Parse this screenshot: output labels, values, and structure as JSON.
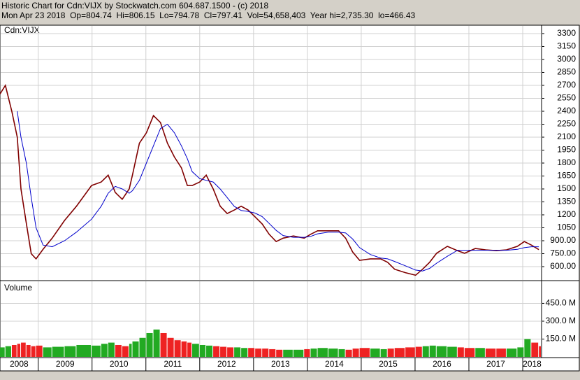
{
  "header": {
    "title": "Historic Chart for Cdn:VIJX by Stockwatch.com 604.687.1500 - (c) 2018",
    "quote": "Mon Apr 23 2018  Op=804.74  Hi=806.15  Lo=794.78  Cl=797.41  Vol=54,658,403  Year hi=2,735.30  lo=466.43"
  },
  "chart_data": [
    {
      "type": "line",
      "label": "Cdn:VIJX",
      "x": [
        2008.29,
        2008.39,
        2008.51,
        2008.61,
        2008.68,
        2008.78,
        2008.87,
        2008.96,
        2009.09,
        2009.26,
        2009.49,
        2009.71,
        2009.99,
        2010.17,
        2010.3,
        2010.43,
        2010.56,
        2010.69,
        2010.75,
        2010.88,
        2011.01,
        2011.14,
        2011.27,
        2011.4,
        2011.53,
        2011.66,
        2011.77,
        2011.86,
        2012.0,
        2012.12,
        2012.25,
        2012.38,
        2012.51,
        2012.64,
        2012.77,
        2012.9,
        2013.03,
        2013.16,
        2013.29,
        2013.42,
        2013.55,
        2013.74,
        2013.94,
        2014.06,
        2014.19,
        2014.39,
        2014.58,
        2014.71,
        2014.84,
        2014.97,
        2015.17,
        2015.36,
        2015.49,
        2015.62,
        2015.82,
        2016.01,
        2016.14,
        2016.27,
        2016.4,
        2016.6,
        2016.79,
        2016.92,
        2017.12,
        2017.31,
        2017.51,
        2017.7,
        2017.9,
        2018.03,
        2018.16,
        2018.3
      ],
      "series": [
        {
          "color": "#800000",
          "values": [
            2600,
            2700,
            2400,
            2100,
            1500,
            1100,
            750,
            690,
            800,
            930,
            1135,
            1300,
            1540,
            1580,
            1660,
            1460,
            1380,
            1500,
            1660,
            2030,
            2150,
            2350,
            2270,
            2030,
            1870,
            1745,
            1540,
            1540,
            1580,
            1660,
            1500,
            1300,
            1215,
            1255,
            1300,
            1255,
            1175,
            1095,
            975,
            890,
            930,
            955,
            930,
            975,
            1015,
            1015,
            1015,
            930,
            770,
            673,
            690,
            690,
            650,
            570,
            530,
            500,
            570,
            650,
            755,
            835,
            785,
            755,
            810,
            795,
            785,
            795,
            835,
            890,
            850,
            797
          ]
        },
        {
          "color": "#0000cc",
          "values": [
            null,
            null,
            null,
            2400,
            2100,
            1800,
            1400,
            1050,
            850,
            830,
            900,
            1000,
            1150,
            1300,
            1450,
            1530,
            1500,
            1450,
            1480,
            1600,
            1800,
            2000,
            2200,
            2250,
            2150,
            2000,
            1850,
            1700,
            1620,
            1600,
            1580,
            1500,
            1400,
            1300,
            1250,
            1240,
            1220,
            1180,
            1100,
            1020,
            960,
            940,
            940,
            950,
            980,
            1000,
            1000,
            990,
            920,
            820,
            740,
            700,
            690,
            660,
            610,
            560,
            550,
            580,
            640,
            720,
            790,
            790,
            790,
            790,
            790,
            790,
            800,
            820,
            830,
            830
          ]
        }
      ],
      "xlim": [
        2008.29,
        2018.35
      ],
      "xticks": [
        2008,
        2009,
        2010,
        2011,
        2012,
        2013,
        2014,
        2015,
        2016,
        2017,
        2018
      ],
      "ylim": [
        446,
        3389
      ],
      "yticks": [
        {
          "value": 600,
          "label": "600.00"
        },
        {
          "value": 750,
          "label": "750.00"
        },
        {
          "value": 900,
          "label": "900.00"
        },
        {
          "value": 1050,
          "label": "1050"
        },
        {
          "value": 1200,
          "label": "1200"
        },
        {
          "value": 1350,
          "label": "1350"
        },
        {
          "value": 1500,
          "label": "1500"
        },
        {
          "value": 1650,
          "label": "1650"
        },
        {
          "value": 1800,
          "label": "1800"
        },
        {
          "value": 1950,
          "label": "1950"
        },
        {
          "value": 2100,
          "label": "2100"
        },
        {
          "value": 2250,
          "label": "2250"
        },
        {
          "value": 2400,
          "label": "2400"
        },
        {
          "value": 2550,
          "label": "2550"
        },
        {
          "value": 2700,
          "label": "2700"
        },
        {
          "value": 2850,
          "label": "2850"
        },
        {
          "value": 3000,
          "label": "3000"
        },
        {
          "value": 3150,
          "label": "3150"
        },
        {
          "value": 3300,
          "label": "3300"
        }
      ],
      "grid": true
    },
    {
      "type": "bar",
      "label": "Volume",
      "up_color": "#22aa22",
      "down_color": "#ee2222",
      "values": [
        80,
        90,
        100,
        110,
        120,
        100,
        90,
        95,
        80,
        85,
        90,
        100,
        95,
        110,
        120,
        100,
        90,
        110,
        130,
        160,
        200,
        230,
        200,
        160,
        140,
        130,
        120,
        110,
        100,
        95,
        90,
        85,
        80,
        80,
        75,
        75,
        70,
        70,
        65,
        60,
        60,
        60,
        65,
        70,
        75,
        70,
        65,
        60,
        70,
        75,
        70,
        65,
        70,
        75,
        80,
        85,
        90,
        95,
        90,
        85,
        80,
        75,
        75,
        70,
        70,
        70,
        80,
        150,
        120,
        90
      ],
      "ylim": [
        0,
        629
      ],
      "yticks": [
        {
          "value": 150,
          "label": "150.0 M"
        },
        {
          "value": 300,
          "label": "300.0 M"
        },
        {
          "value": 450,
          "label": "450.0 M"
        }
      ],
      "grid": true
    }
  ]
}
